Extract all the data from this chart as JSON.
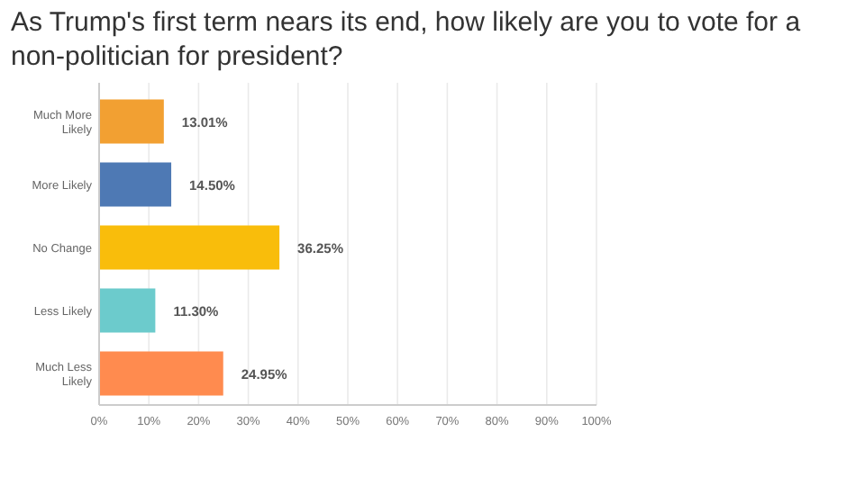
{
  "chart_data": {
    "type": "bar",
    "orientation": "horizontal",
    "title": "As Trump's first term nears its end, how likely are you to vote for a non-politician for president?",
    "categories": [
      "Much More Likely",
      "More Likely",
      "No Change",
      "Less Likely",
      "Much Less Likely"
    ],
    "values": [
      13.01,
      14.5,
      36.25,
      11.3,
      24.95
    ],
    "value_labels": [
      "13.01%",
      "14.50%",
      "36.25%",
      "11.30%",
      "24.95%"
    ],
    "colors": [
      "#f2a032",
      "#4e79b4",
      "#f9bd0b",
      "#6ccbcc",
      "#ff8b4f"
    ],
    "xlim": [
      0,
      100
    ],
    "xticks": [
      {
        "value": 0,
        "label": "0%"
      },
      {
        "value": 10,
        "label": "10%"
      },
      {
        "value": 20,
        "label": "20%"
      },
      {
        "value": 30,
        "label": "30%"
      },
      {
        "value": 40,
        "label": "40%"
      },
      {
        "value": 50,
        "label": "50%"
      },
      {
        "value": 60,
        "label": "60%"
      },
      {
        "value": 70,
        "label": "70%"
      },
      {
        "value": 80,
        "label": "80%"
      },
      {
        "value": 90,
        "label": "90%"
      },
      {
        "value": 100,
        "label": "100%"
      }
    ],
    "grid": "x"
  }
}
